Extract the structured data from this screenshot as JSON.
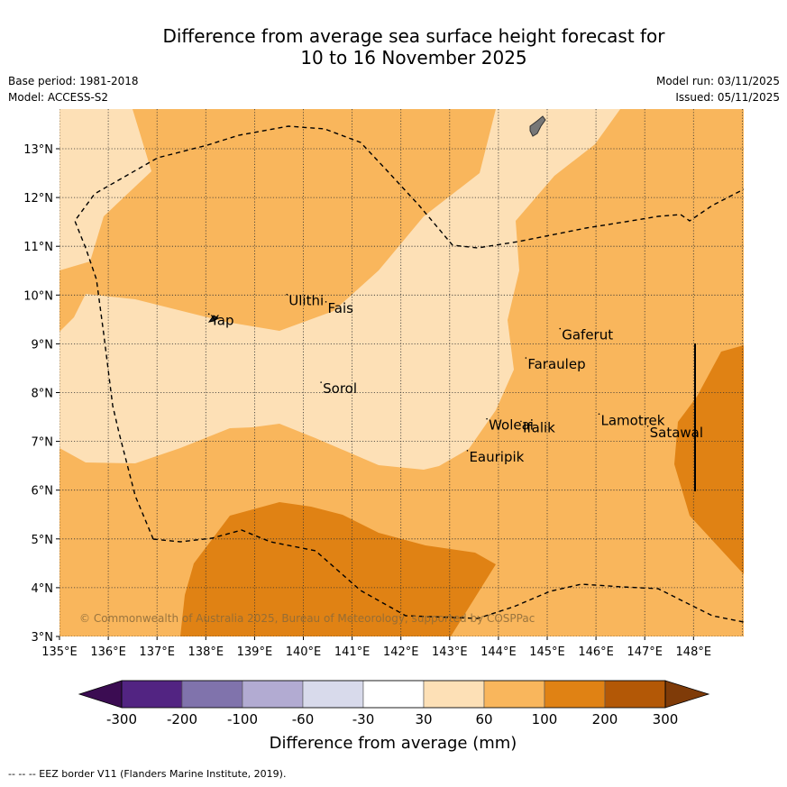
{
  "title_line1": "Difference from average sea surface height forecast for",
  "title_line2": "10 to 16 November 2025",
  "base_period": "Base period: 1981-2018",
  "model": "Model: ACCESS-S2",
  "model_run": "Model run: 03/11/2025",
  "issued": "Issued: 05/11/2025",
  "copyright": "© Commonwealth of Australia 2025, Bureau of Meteorology, supported by COSPPac",
  "footer": "-- -- -- EEZ border V11 (Flanders Marine Institute, 2019).",
  "colorbar": {
    "title": "Difference from average (mm)",
    "labels": [
      "-300",
      "-200",
      "-100",
      "-60",
      "-30",
      "30",
      "60",
      "100",
      "200",
      "300"
    ],
    "colors": [
      "#3b0c52",
      "#522482",
      "#8073ac",
      "#b2abd2",
      "#d8daeb",
      "#ffffff",
      "#fde0b6",
      "#f9b65c",
      "#e08214",
      "#b35806",
      "#7f3b08"
    ]
  },
  "chart_data": {
    "type": "map",
    "lon_range": [
      135,
      149
    ],
    "lat_range": [
      3,
      13.8
    ],
    "x_ticks": [
      "135°E",
      "136°E",
      "137°E",
      "138°E",
      "139°E",
      "140°E",
      "141°E",
      "142°E",
      "143°E",
      "144°E",
      "145°E",
      "146°E",
      "147°E",
      "148°E"
    ],
    "y_ticks": [
      "3°N",
      "4°N",
      "5°N",
      "6°N",
      "7°N",
      "8°N",
      "9°N",
      "10°N",
      "11°N",
      "12°N",
      "13°N"
    ],
    "places": [
      {
        "name": "Yap",
        "lon": 138.1,
        "lat": 9.5
      },
      {
        "name": "Ulithi",
        "lon": 139.7,
        "lat": 9.9
      },
      {
        "name": "Fais",
        "lon": 140.5,
        "lat": 9.75
      },
      {
        "name": "Sorol",
        "lon": 140.4,
        "lat": 8.1
      },
      {
        "name": "Gaferut",
        "lon": 145.3,
        "lat": 9.2
      },
      {
        "name": "Faraulep",
        "lon": 144.6,
        "lat": 8.6
      },
      {
        "name": "Woleai",
        "lon": 143.8,
        "lat": 7.35
      },
      {
        "name": "Ifalik",
        "lon": 144.5,
        "lat": 7.3
      },
      {
        "name": "Lamotrek",
        "lon": 146.1,
        "lat": 7.45
      },
      {
        "name": "Satawal",
        "lon": 147.1,
        "lat": 7.2
      },
      {
        "name": "Eauripik",
        "lon": 143.4,
        "lat": 6.7
      }
    ],
    "levels_mm": [
      30,
      60,
      100,
      200
    ]
  }
}
